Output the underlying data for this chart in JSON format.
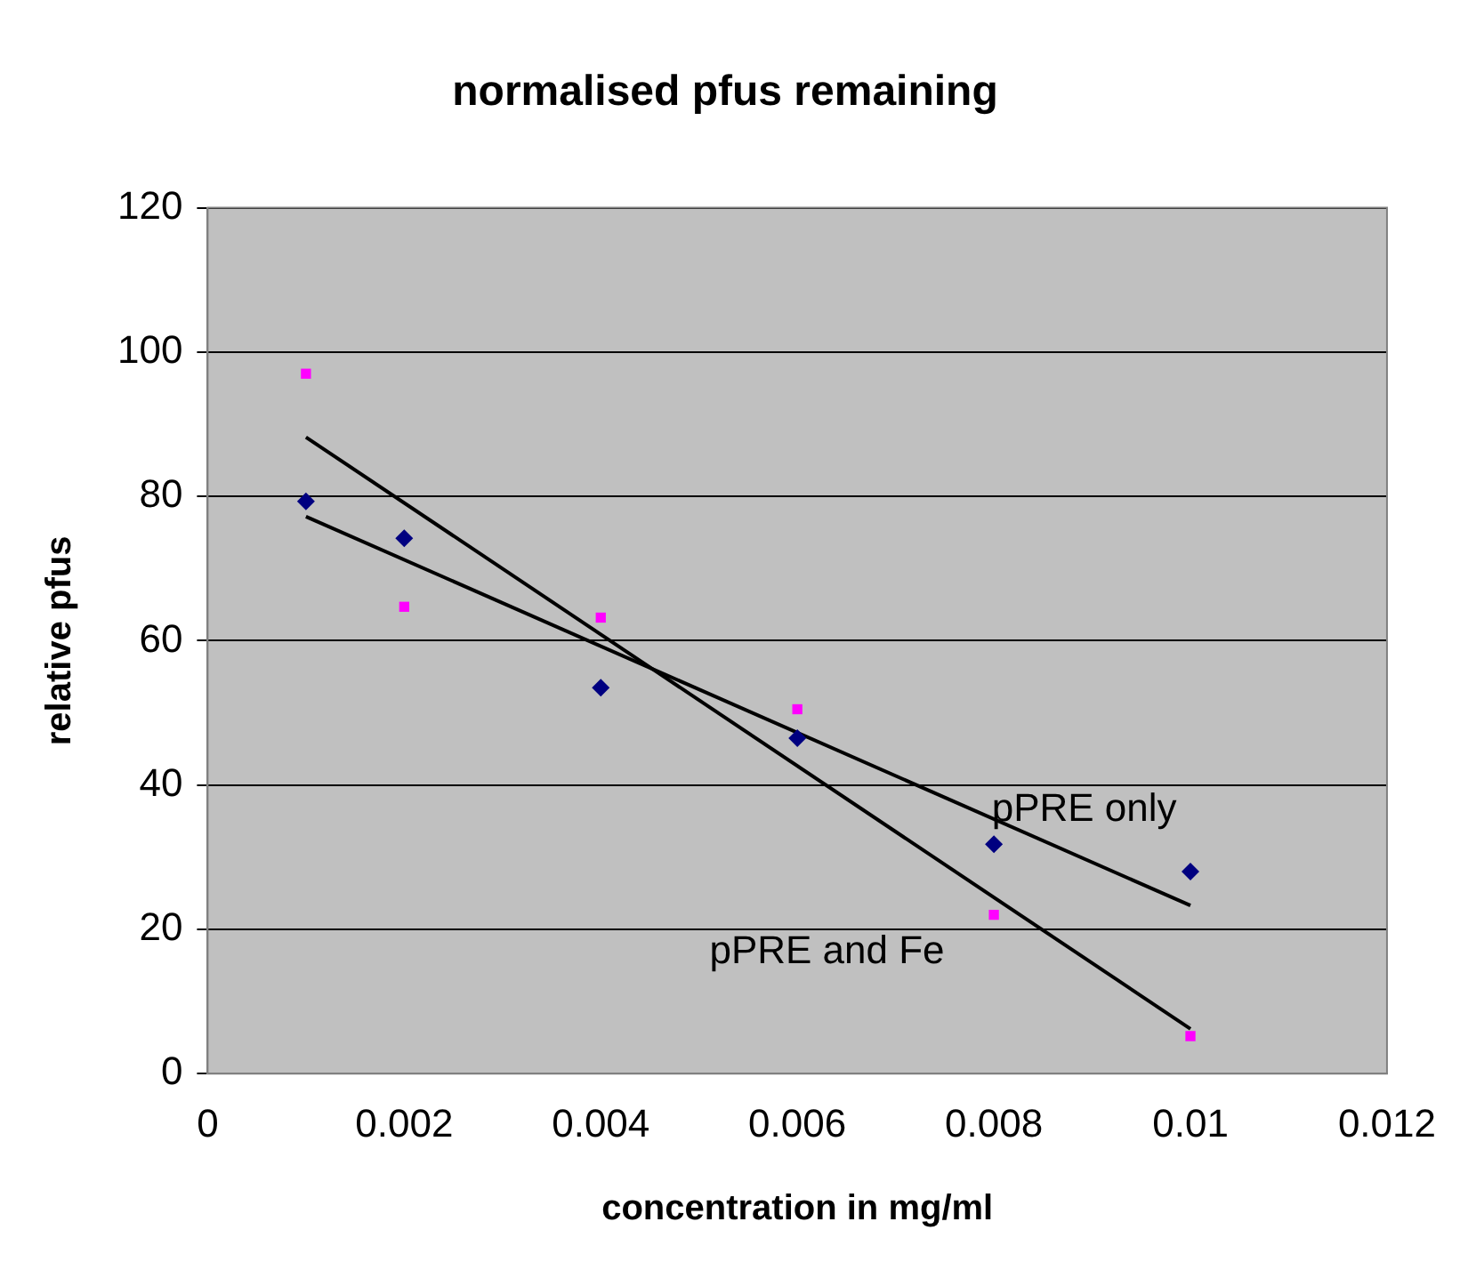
{
  "chart_data": {
    "type": "scatter",
    "title": "normalised pfus remaining",
    "xlabel": "concentration in mg/ml",
    "ylabel": "relative pfus",
    "series": [
      {
        "color": "#000080",
        "marker": "diamond",
        "x": [
          0.001,
          0.002,
          0.004,
          0.006,
          0.008,
          0.01
        ],
        "values": [
          79.3,
          74.2,
          53.5,
          46.5,
          31.8,
          28
        ]
      },
      {
        "color": "#ff00ff",
        "marker": "square",
        "x": [
          0.001,
          0.002,
          0.004,
          0.006,
          0.008,
          0.01
        ],
        "values": [
          97,
          64.7,
          63.2,
          50.5,
          22,
          5.2
        ]
      },
      {
        "type": "line",
        "name": "pPRE only",
        "color": "#000000",
        "marker": "none",
        "x": [
          0.001,
          0.01
        ],
        "values": [
          77.2,
          23.3
        ]
      },
      {
        "type": "line",
        "name": "pPRE and Fe",
        "color": "#000000",
        "marker": "none",
        "x": [
          0.001,
          0.01
        ],
        "values": [
          88.2,
          6.2
        ]
      }
    ],
    "xlim": [
      0,
      0.012
    ],
    "xticks": [
      0,
      0.002,
      0.004,
      0.006,
      0.008,
      0.01,
      0.012
    ],
    "ylim": [
      0,
      120
    ],
    "yticks": [
      0,
      20,
      40,
      60,
      80,
      100,
      120
    ],
    "grid": "y",
    "legend": false
  }
}
